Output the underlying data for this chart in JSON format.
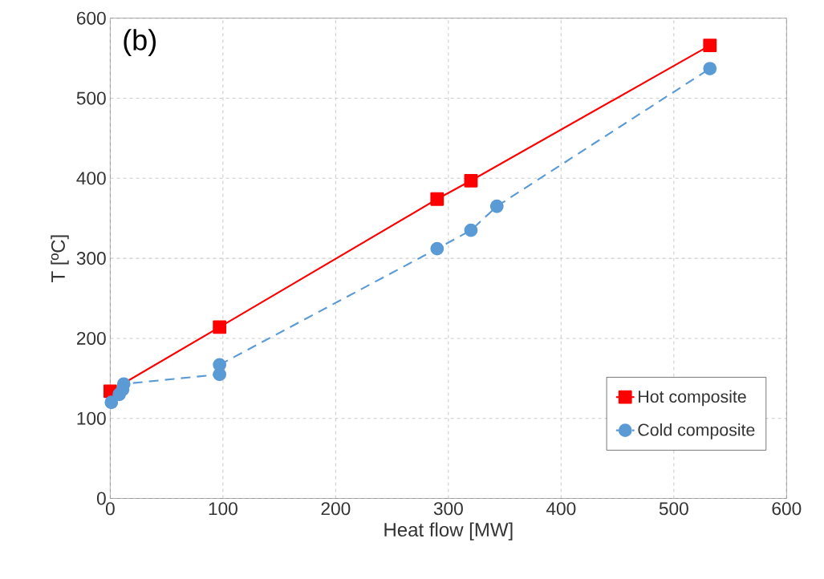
{
  "chart_data": {
    "type": "line",
    "xlabel": "Heat flow [MW]",
    "ylabel": "T [ºC]",
    "annotations": [
      "(b)"
    ],
    "xlim": [
      0,
      600
    ],
    "ylim": [
      0,
      600
    ],
    "xticks": [
      0,
      100,
      200,
      300,
      400,
      500,
      600
    ],
    "yticks": [
      0,
      100,
      200,
      300,
      400,
      500,
      600
    ],
    "grid": true,
    "legend": "bottom right",
    "series": [
      {
        "name": "Hot composite",
        "color": "#ff0000",
        "marker": "square",
        "line_style": "solid",
        "x": [
          0,
          7,
          12,
          97,
          290,
          320,
          532
        ],
        "values": [
          134,
          null,
          null,
          214,
          374,
          397,
          566
        ]
      },
      {
        "name": "Cold composite",
        "color": "#5b9bd5",
        "marker": "circle",
        "line_style": "dashed",
        "x": [
          1,
          5,
          8,
          11,
          12,
          97,
          97,
          290,
          320,
          343,
          532
        ],
        "values": [
          120,
          null,
          130,
          136,
          143,
          155,
          167,
          312,
          335,
          365,
          537
        ]
      }
    ]
  }
}
